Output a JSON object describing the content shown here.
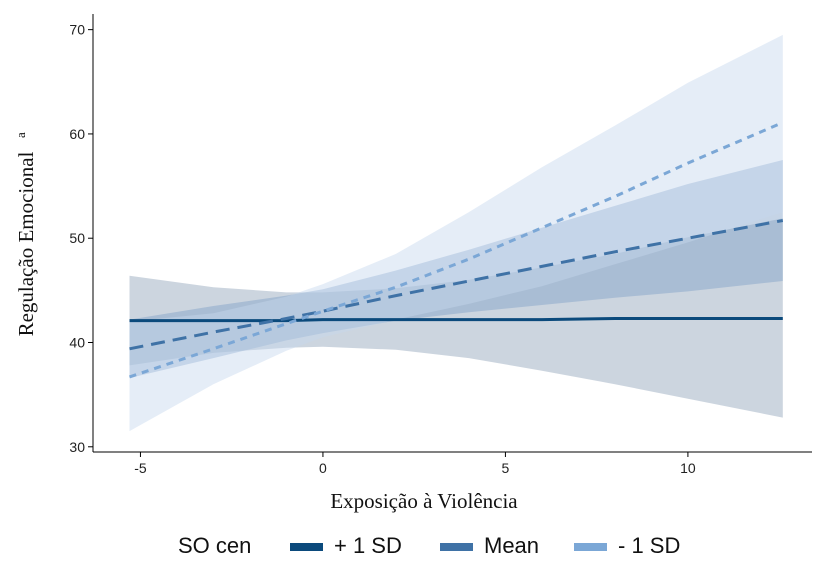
{
  "chart_data": {
    "type": "line",
    "title": "",
    "xlabel": "Exposição à Violência",
    "ylabel": "Regulação Emocional",
    "ylabel_superscript": "a",
    "xlim": [
      -6.3,
      13.4
    ],
    "ylim": [
      29.5,
      71.5
    ],
    "x_ticks": [
      -5,
      0,
      5,
      10
    ],
    "x_tick_labels": [
      "-5",
      "0",
      "5",
      "10"
    ],
    "y_ticks": [
      30,
      40,
      50,
      60,
      70
    ],
    "y_tick_labels": [
      "30",
      "40",
      "50",
      "60",
      "70"
    ],
    "grid": false,
    "legend": {
      "title": "SO_cen",
      "position": "bottom"
    },
    "x": [
      -5.3,
      -3,
      -1,
      0,
      2,
      4,
      6,
      8,
      10,
      12.6
    ],
    "series": [
      {
        "name": "+ 1 SD",
        "color": "#0b4a7c",
        "band_color": "#8fa1b8",
        "dash": "solid",
        "values": [
          42.1,
          42.1,
          42.1,
          42.2,
          42.2,
          42.2,
          42.2,
          42.3,
          42.3,
          42.3
        ],
        "lower": [
          37.8,
          39.0,
          39.5,
          39.6,
          39.3,
          38.5,
          37.3,
          36.0,
          34.6,
          32.8
        ],
        "upper": [
          46.4,
          45.3,
          44.8,
          44.8,
          45.2,
          46.0,
          47.2,
          48.5,
          50.1,
          51.9
        ]
      },
      {
        "name": "Mean",
        "color": "#3f72a6",
        "band_color": "#7fa0c8",
        "dash": "long",
        "values": [
          39.4,
          41.0,
          42.3,
          43.0,
          44.5,
          45.9,
          47.3,
          48.7,
          50.0,
          51.7
        ],
        "lower": [
          36.6,
          38.5,
          40.2,
          40.9,
          42.1,
          42.9,
          43.6,
          44.3,
          44.9,
          45.9
        ],
        "upper": [
          42.2,
          43.5,
          44.5,
          45.1,
          46.9,
          48.9,
          51.0,
          53.1,
          55.2,
          57.5
        ]
      },
      {
        "name": "- 1 SD",
        "color": "#7ba7d6",
        "band_color": "#c6d8ee",
        "dash": "short",
        "values": [
          36.7,
          39.4,
          41.8,
          43.0,
          45.3,
          48.0,
          51.0,
          54.0,
          57.2,
          61.1
        ],
        "lower": [
          31.5,
          36.0,
          39.2,
          40.5,
          42.2,
          43.7,
          45.4,
          47.5,
          49.6,
          52.5
        ],
        "upper": [
          42.0,
          42.8,
          44.4,
          45.6,
          48.5,
          52.5,
          56.8,
          60.8,
          64.9,
          69.5
        ]
      }
    ]
  }
}
